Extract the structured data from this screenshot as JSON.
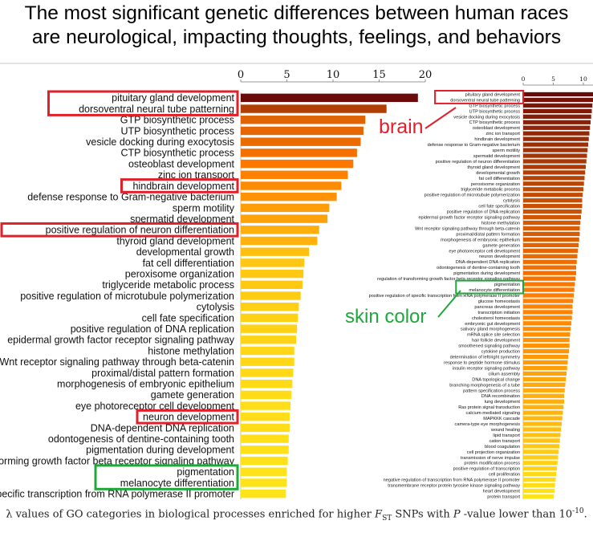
{
  "headline": {
    "line1": "The most significant genetic differences between human races",
    "line2": "are neurological, impacting thoughts, feelings, and behaviors"
  },
  "caption": {
    "pre": "λ values of GO categories in biological processes enriched for higher ",
    "f": "F",
    "sub": "ST",
    "mid": " SNPs with ",
    "p": "P",
    "post": " -value lower than 10",
    "exp": "-10",
    "end": "."
  },
  "annotations": {
    "brain": "brain",
    "skin": "skin color"
  },
  "colors": {
    "bar_low": "#ffe41a",
    "bar_mid": "#ff7a00",
    "bar_high": "#6b0a0a",
    "box_red": "#e0202a",
    "box_green": "#1fa83a",
    "brain_text": "#e0202a",
    "skin_text": "#1fa83a"
  },
  "chart_data": [
    {
      "type": "bar",
      "orientation": "horizontal",
      "title": "",
      "xlabel": "",
      "ylabel": "",
      "xlim": [
        0,
        20
      ],
      "ticks": [
        0,
        5,
        10,
        15,
        20
      ],
      "grid": false,
      "categories": [
        "pituitary gland development",
        "dorsoventral neural tube patterning",
        "GTP biosynthetic process",
        "UTP biosynthetic process",
        "vesicle docking during exocytosis",
        "CTP biosynthetic process",
        "osteoblast development",
        "zinc ion transport",
        "hindbrain development",
        "defense response to Gram-negative bacterium",
        "sperm motility",
        "spermatid development",
        "positive regulation of neuron differentiation",
        "thyroid gland development",
        "developmental growth",
        "fat cell differentiation",
        "peroxisome organization",
        "triglyceride metabolic process",
        "positive regulation of microtubule polymerization",
        "cytolysis",
        "cell fate specification",
        "positive regulation of DNA replication",
        "epidermal growth factor receptor signaling pathway",
        "histone methylation",
        "Wnt receptor signaling pathway through beta-catenin",
        "proximal/distal pattern formation",
        "morphogenesis of embryonic epithelium",
        "gamete generation",
        "eye photoreceptor cell development",
        "neuron development",
        "DNA-dependent DNA replication",
        "odontogenesis of dentine-containing tooth",
        "pigmentation during development",
        "regulation of transforming growth factor beta receptor signaling pathway",
        "pigmentation",
        "melanocyte differentiation",
        "positive regulation of specific transcription from RNA polymerase II promoter"
      ],
      "values": [
        19.2,
        15.8,
        13.5,
        13.3,
        13.0,
        12.6,
        12.2,
        11.6,
        10.9,
        10.4,
        9.6,
        9.4,
        8.5,
        8.3,
        7.4,
        6.9,
        6.8,
        6.7,
        6.5,
        6.3,
        6.2,
        6.1,
        6.0,
        5.8,
        5.8,
        5.7,
        5.6,
        5.5,
        5.4,
        5.3,
        5.3,
        5.2,
        5.2,
        5.1,
        5.0,
        5.0,
        4.9
      ],
      "highlight_red": [
        0,
        1,
        8,
        12,
        29
      ],
      "highlight_green": [
        34,
        35
      ]
    },
    {
      "type": "bar",
      "orientation": "horizontal",
      "title": "",
      "xlabel": "",
      "ylabel": "",
      "xlim": [
        0,
        12
      ],
      "ticks": [
        0,
        5,
        10
      ],
      "grid": false,
      "categories": [
        "pituitary gland development",
        "dorsoventral neural tube patterning",
        "GTP biosynthetic process",
        "UTP biosynthetic process",
        "vesicle docking during exocytosis",
        "CTP biosynthetic process",
        "osteoblast development",
        "zinc ion transport",
        "hindbrain development",
        "defense response to Gram-negative bacterium",
        "sperm motility",
        "spermatid development",
        "positive regulation of neuron differentiation",
        "thyroid gland development",
        "developmental growth",
        "fat cell differentiation",
        "peroxisome organization",
        "triglyceride metabolic process",
        "positive regulation of microtubule polymerization",
        "cytolysis",
        "cell fate specification",
        "positive regulation of DNA replication",
        "epidermal growth factor receptor signaling pathway",
        "histone methylation",
        "Wnt receptor signaling pathway through beta-catenin",
        "proximal/distal pattern formation",
        "morphogenesis of embryonic epithelium",
        "gamete generation",
        "eye photoreceptor cell development",
        "neuron development",
        "DNA-dependent DNA replication",
        "odontogenesis of dentine-containing tooth",
        "pigmentation during development",
        "regulation of transforming growth factor beta receptor signaling pathway",
        "pigmentation",
        "melanocyte differentiation",
        "positive regulation of specific transcription from RNA polymerase II promoter",
        "glucose homeostasis",
        "pancreas development",
        "transcription initiation",
        "cholesterol homeostasis",
        "embryonic gut development",
        "salivary gland morphogenesis",
        "mRNA splice site selection",
        "hair follicle development",
        "smoothened signaling pathway",
        "cytokine production",
        "determination of left/right symmetry",
        "response to peptide hormone stimulus",
        "insulin receptor signaling pathway",
        "cilium assembly",
        "DNA topological change",
        "branching morphogenesis of a tube",
        "pattern specification process",
        "DNA recombination",
        "lung development",
        "Ras protein signal transduction",
        "calcium-mediated signaling",
        "MAPKKK cascade",
        "camera-type eye morphogenesis",
        "wound healing",
        "lipid transport",
        "cation transport",
        "blood coagulation",
        "cell projection organization",
        "transmission of nerve impulse",
        "protein modification process",
        "positive regulation of transcription",
        "cell proliferation",
        "negative regulation of transcription from RNA polymerase II promoter",
        "transmembrane receptor protein tyrosine kinase signaling pathway",
        "heart development",
        "protein transport"
      ],
      "values": [
        11.9,
        11.7,
        11.5,
        11.4,
        11.3,
        11.2,
        11.1,
        11.0,
        10.9,
        10.8,
        10.7,
        10.6,
        10.5,
        10.4,
        10.3,
        10.2,
        10.1,
        10.0,
        9.9,
        9.8,
        9.8,
        9.7,
        9.6,
        9.5,
        9.4,
        9.4,
        9.3,
        9.2,
        9.1,
        9.0,
        8.9,
        8.8,
        8.8,
        8.7,
        8.6,
        8.5,
        8.4,
        8.3,
        8.2,
        8.2,
        8.1,
        8.0,
        7.9,
        7.8,
        7.7,
        7.7,
        7.6,
        7.5,
        7.4,
        7.3,
        7.2,
        7.1,
        7.0,
        6.9,
        6.8,
        6.8,
        6.7,
        6.6,
        6.5,
        6.4,
        6.3,
        6.2,
        6.1,
        6.0,
        5.9,
        5.8,
        5.7,
        5.6,
        5.5,
        5.4,
        5.3,
        5.2,
        5.1
      ],
      "highlight_red": [
        0,
        1
      ],
      "highlight_green": [
        34,
        35
      ]
    }
  ]
}
